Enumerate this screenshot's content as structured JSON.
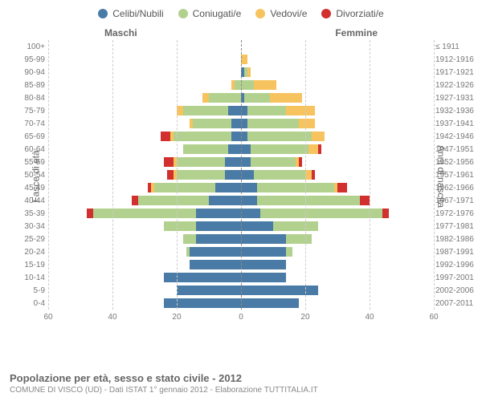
{
  "legend": [
    {
      "label": "Celibi/Nubili",
      "color": "#4a7ba6"
    },
    {
      "label": "Coniugati/e",
      "color": "#b2d18e"
    },
    {
      "label": "Vedovi/e",
      "color": "#f7c35f"
    },
    {
      "label": "Divorziati/e",
      "color": "#d22f2f"
    }
  ],
  "colors": {
    "celibi": "#4a7ba6",
    "coniugati": "#b2d18e",
    "vedovi": "#f7c35f",
    "divorziati": "#d22f2f",
    "grid": "#cccccc",
    "center": "#888888",
    "bg": "#ffffff"
  },
  "axis": {
    "left_label": "Fasce di età",
    "right_label": "Anni di nascita",
    "male_label": "Maschi",
    "female_label": "Femmine",
    "xlim": 60,
    "xticks": [
      60,
      40,
      20,
      0,
      20,
      40,
      60
    ]
  },
  "title": "Popolazione per età, sesso e stato civile - 2012",
  "subtitle": "COMUNE DI VISCO (UD) - Dati ISTAT 1° gennaio 2012 - Elaborazione TUTTITALIA.IT",
  "rows": [
    {
      "age": "100+",
      "birth": "≤ 1911",
      "m": {
        "c": 0,
        "co": 0,
        "v": 0,
        "d": 0
      },
      "f": {
        "c": 0,
        "co": 0,
        "v": 0,
        "d": 0
      }
    },
    {
      "age": "95-99",
      "birth": "1912-1916",
      "m": {
        "c": 0,
        "co": 0,
        "v": 0,
        "d": 0
      },
      "f": {
        "c": 0,
        "co": 0,
        "v": 2,
        "d": 0
      }
    },
    {
      "age": "90-94",
      "birth": "1917-1921",
      "m": {
        "c": 0,
        "co": 0,
        "v": 0,
        "d": 0
      },
      "f": {
        "c": 1,
        "co": 1,
        "v": 1,
        "d": 0
      }
    },
    {
      "age": "85-89",
      "birth": "1922-1926",
      "m": {
        "c": 0,
        "co": 2,
        "v": 1,
        "d": 0
      },
      "f": {
        "c": 0,
        "co": 4,
        "v": 7,
        "d": 0
      }
    },
    {
      "age": "80-84",
      "birth": "1927-1931",
      "m": {
        "c": 0,
        "co": 10,
        "v": 2,
        "d": 0
      },
      "f": {
        "c": 1,
        "co": 8,
        "v": 10,
        "d": 0
      }
    },
    {
      "age": "75-79",
      "birth": "1932-1936",
      "m": {
        "c": 4,
        "co": 14,
        "v": 2,
        "d": 0
      },
      "f": {
        "c": 2,
        "co": 12,
        "v": 9,
        "d": 0
      }
    },
    {
      "age": "70-74",
      "birth": "1937-1941",
      "m": {
        "c": 3,
        "co": 12,
        "v": 1,
        "d": 0
      },
      "f": {
        "c": 2,
        "co": 16,
        "v": 5,
        "d": 0
      }
    },
    {
      "age": "65-69",
      "birth": "1942-1946",
      "m": {
        "c": 3,
        "co": 18,
        "v": 1,
        "d": 3
      },
      "f": {
        "c": 2,
        "co": 20,
        "v": 4,
        "d": 0
      }
    },
    {
      "age": "60-64",
      "birth": "1947-1951",
      "m": {
        "c": 4,
        "co": 14,
        "v": 0,
        "d": 0
      },
      "f": {
        "c": 3,
        "co": 18,
        "v": 3,
        "d": 1
      }
    },
    {
      "age": "55-59",
      "birth": "1952-1956",
      "m": {
        "c": 5,
        "co": 15,
        "v": 1,
        "d": 3
      },
      "f": {
        "c": 3,
        "co": 14,
        "v": 1,
        "d": 1
      }
    },
    {
      "age": "50-54",
      "birth": "1957-1961",
      "m": {
        "c": 5,
        "co": 15,
        "v": 1,
        "d": 2
      },
      "f": {
        "c": 4,
        "co": 16,
        "v": 2,
        "d": 1
      }
    },
    {
      "age": "45-49",
      "birth": "1962-1966",
      "m": {
        "c": 8,
        "co": 19,
        "v": 1,
        "d": 1
      },
      "f": {
        "c": 5,
        "co": 24,
        "v": 1,
        "d": 3
      }
    },
    {
      "age": "40-44",
      "birth": "1967-1971",
      "m": {
        "c": 10,
        "co": 22,
        "v": 0,
        "d": 2
      },
      "f": {
        "c": 5,
        "co": 32,
        "v": 0,
        "d": 3
      }
    },
    {
      "age": "35-39",
      "birth": "1972-1976",
      "m": {
        "c": 14,
        "co": 32,
        "v": 0,
        "d": 2
      },
      "f": {
        "c": 6,
        "co": 38,
        "v": 0,
        "d": 2
      }
    },
    {
      "age": "30-34",
      "birth": "1977-1981",
      "m": {
        "c": 14,
        "co": 10,
        "v": 0,
        "d": 0
      },
      "f": {
        "c": 10,
        "co": 14,
        "v": 0,
        "d": 0
      }
    },
    {
      "age": "25-29",
      "birth": "1982-1986",
      "m": {
        "c": 14,
        "co": 4,
        "v": 0,
        "d": 0
      },
      "f": {
        "c": 14,
        "co": 8,
        "v": 0,
        "d": 0
      }
    },
    {
      "age": "20-24",
      "birth": "1987-1991",
      "m": {
        "c": 16,
        "co": 1,
        "v": 0,
        "d": 0
      },
      "f": {
        "c": 14,
        "co": 2,
        "v": 0,
        "d": 0
      }
    },
    {
      "age": "15-19",
      "birth": "1992-1996",
      "m": {
        "c": 16,
        "co": 0,
        "v": 0,
        "d": 0
      },
      "f": {
        "c": 14,
        "co": 0,
        "v": 0,
        "d": 0
      }
    },
    {
      "age": "10-14",
      "birth": "1997-2001",
      "m": {
        "c": 24,
        "co": 0,
        "v": 0,
        "d": 0
      },
      "f": {
        "c": 14,
        "co": 0,
        "v": 0,
        "d": 0
      }
    },
    {
      "age": "5-9",
      "birth": "2002-2006",
      "m": {
        "c": 20,
        "co": 0,
        "v": 0,
        "d": 0
      },
      "f": {
        "c": 24,
        "co": 0,
        "v": 0,
        "d": 0
      }
    },
    {
      "age": "0-4",
      "birth": "2007-2011",
      "m": {
        "c": 24,
        "co": 0,
        "v": 0,
        "d": 0
      },
      "f": {
        "c": 18,
        "co": 0,
        "v": 0,
        "d": 0
      }
    }
  ]
}
